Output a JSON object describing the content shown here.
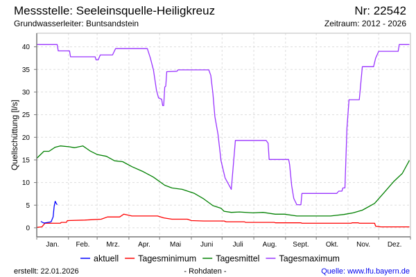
{
  "header": {
    "title": "Messstelle: Seeleinsquelle-Heiligkreuz",
    "number": "Nr: 22542",
    "aquifer": "Grundwasserleiter: Buntsandstein",
    "period": "Zeitraum: 2012 - 2026"
  },
  "footer": {
    "created": "erstellt:  22.01.2026",
    "rawdata": "- Rohdaten -",
    "source": "Quelle: www.lfu.bayern.de"
  },
  "chart_data": {
    "type": "line",
    "title": "Messstelle: Seeleinsquelle-Heiligkreuz",
    "xlabel": "",
    "ylabel": "Quellschüttung [l/s]",
    "x_unit": "day of year",
    "xlim": [
      0,
      365
    ],
    "ylim": [
      -2,
      43
    ],
    "yticks": [
      0,
      5,
      10,
      15,
      20,
      25,
      30,
      35,
      40
    ],
    "month_labels": [
      "Jan.",
      "Feb.",
      "Mrz.",
      "Apr.",
      "Mai",
      "Juni",
      "Juli",
      "Aug.",
      "Sept.",
      "Okt.",
      "Nov.",
      "Dez."
    ],
    "month_starts": [
      0,
      31,
      59,
      90,
      120,
      151,
      181,
      212,
      243,
      273,
      304,
      334,
      365
    ],
    "grid": true,
    "legend_position": "bottom",
    "colors": {
      "aktuell": "#0000ff",
      "Tagesminimum": "#ff0000",
      "Tagesmittel": "#008000",
      "Tagesmaximum": "#9933ff"
    },
    "series": [
      {
        "name": "Tagesmaximum",
        "points": [
          [
            0,
            40.5
          ],
          [
            20,
            40.5
          ],
          [
            21,
            39.1
          ],
          [
            32,
            39.1
          ],
          [
            33,
            37.8
          ],
          [
            57,
            37.8
          ],
          [
            58,
            37.1
          ],
          [
            60,
            37.1
          ],
          [
            62,
            38.2
          ],
          [
            74,
            38.2
          ],
          [
            77,
            39.6
          ],
          [
            108,
            39.6
          ],
          [
            111,
            37.5
          ],
          [
            114,
            34.9
          ],
          [
            117,
            30.3
          ],
          [
            119,
            28.7
          ],
          [
            122,
            28.4
          ],
          [
            123,
            27.0
          ],
          [
            124,
            27.0
          ],
          [
            125,
            31.1
          ],
          [
            126,
            31.3
          ],
          [
            127,
            34.5
          ],
          [
            137,
            34.6
          ],
          [
            138,
            34.9
          ],
          [
            168,
            34.9
          ],
          [
            170,
            33.7
          ],
          [
            172,
            29.8
          ],
          [
            174,
            24.6
          ],
          [
            177,
            20.7
          ],
          [
            180,
            14.8
          ],
          [
            184,
            11.0
          ],
          [
            190,
            8.5
          ],
          [
            194,
            19.3
          ],
          [
            224,
            19.3
          ],
          [
            226,
            18.7
          ],
          [
            227,
            15.1
          ],
          [
            246,
            15.1
          ],
          [
            247,
            14.0
          ],
          [
            249,
            9.3
          ],
          [
            251,
            6.5
          ],
          [
            254,
            5.1
          ],
          [
            258,
            5.1
          ],
          [
            259,
            7.6
          ],
          [
            293,
            7.6
          ],
          [
            295,
            8.1
          ],
          [
            298,
            8.1
          ],
          [
            299,
            8.8
          ],
          [
            301,
            8.8
          ],
          [
            303,
            22.0
          ],
          [
            305,
            28.3
          ],
          [
            315,
            28.3
          ],
          [
            318,
            35.6
          ],
          [
            329,
            35.6
          ],
          [
            331,
            37.5
          ],
          [
            334,
            39.0
          ],
          [
            353,
            39.0
          ],
          [
            354,
            40.5
          ],
          [
            364,
            40.5
          ]
        ]
      },
      {
        "name": "Tagesmittel",
        "points": [
          [
            0,
            15.35
          ],
          [
            7,
            16.9
          ],
          [
            12,
            16.9
          ],
          [
            18,
            17.8
          ],
          [
            23,
            18.1
          ],
          [
            32,
            17.9
          ],
          [
            37,
            17.7
          ],
          [
            45,
            18.1
          ],
          [
            52,
            17.0
          ],
          [
            59,
            16.2
          ],
          [
            68,
            15.8
          ],
          [
            76,
            14.8
          ],
          [
            84,
            14.6
          ],
          [
            93,
            13.5
          ],
          [
            104,
            12.4
          ],
          [
            114,
            11.2
          ],
          [
            125,
            9.4
          ],
          [
            132,
            8.8
          ],
          [
            142,
            8.5
          ],
          [
            154,
            7.6
          ],
          [
            163,
            6.4
          ],
          [
            172,
            4.9
          ],
          [
            180,
            4.3
          ],
          [
            183,
            3.65
          ],
          [
            190,
            3.4
          ],
          [
            198,
            3.5
          ],
          [
            211,
            3.3
          ],
          [
            221,
            3.4
          ],
          [
            233,
            3.0
          ],
          [
            242,
            3.0
          ],
          [
            254,
            2.6
          ],
          [
            287,
            2.6
          ],
          [
            300,
            2.95
          ],
          [
            309,
            3.3
          ],
          [
            318,
            3.9
          ],
          [
            330,
            5.4
          ],
          [
            339,
            7.7
          ],
          [
            349,
            10.3
          ],
          [
            357,
            12.0
          ],
          [
            364,
            14.9
          ]
        ]
      },
      {
        "name": "Tagesminimum",
        "points": [
          [
            0,
            0.1
          ],
          [
            5,
            0.2
          ],
          [
            8,
            1.0
          ],
          [
            23,
            1.0
          ],
          [
            24,
            1.2
          ],
          [
            29,
            1.2
          ],
          [
            30,
            1.6
          ],
          [
            47,
            1.7
          ],
          [
            63,
            1.9
          ],
          [
            69,
            2.4
          ],
          [
            81,
            2.4
          ],
          [
            85,
            3.0
          ],
          [
            93,
            2.6
          ],
          [
            118,
            2.6
          ],
          [
            124,
            2.2
          ],
          [
            132,
            1.9
          ],
          [
            147,
            1.9
          ],
          [
            151,
            1.6
          ],
          [
            163,
            1.5
          ],
          [
            183,
            1.5
          ],
          [
            185,
            1.3
          ],
          [
            203,
            1.3
          ],
          [
            204,
            1.2
          ],
          [
            232,
            1.2
          ],
          [
            233,
            1.1
          ],
          [
            258,
            1.1
          ],
          [
            259,
            1.0
          ],
          [
            307,
            1.0
          ],
          [
            308,
            1.1
          ],
          [
            314,
            1.1
          ],
          [
            315,
            1.0
          ],
          [
            330,
            1.0
          ],
          [
            331,
            0.35
          ],
          [
            336,
            0.2
          ],
          [
            364,
            0.2
          ]
        ]
      },
      {
        "name": "aktuell",
        "points": [
          [
            4,
            1.4
          ],
          [
            7,
            1.05
          ],
          [
            14,
            1.3
          ],
          [
            16,
            2.4
          ],
          [
            17,
            4.7
          ],
          [
            18,
            5.85
          ],
          [
            19,
            5.4
          ],
          [
            20,
            5.1
          ]
        ]
      }
    ]
  }
}
